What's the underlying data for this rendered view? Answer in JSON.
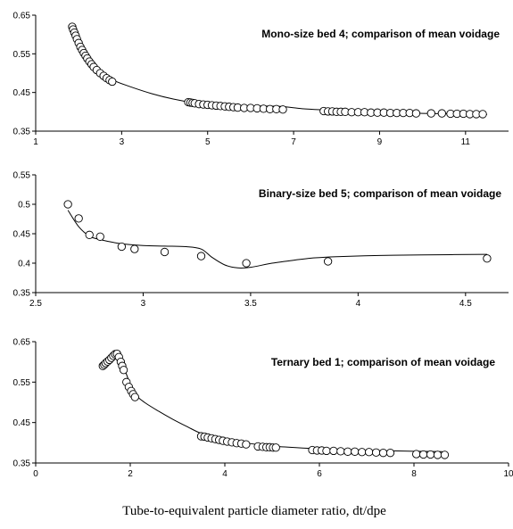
{
  "xlabel": "Tube-to-equivalent particle diameter ratio, dt/dpe",
  "chart_data": [
    {
      "type": "scatter",
      "title": "Mono-size bed 4; comparison of mean voidage",
      "xlim": [
        1,
        12
      ],
      "ylim": [
        0.35,
        0.65
      ],
      "xticks": [
        1,
        3,
        5,
        7,
        9,
        11
      ],
      "yticks": [
        0.35,
        0.45,
        0.55,
        0.65
      ],
      "xtick_labels": [
        "1",
        "3",
        "5",
        "7",
        "9",
        "11"
      ],
      "ytick_labels": [
        "0.35",
        "0.45",
        "0.55",
        "0.65"
      ],
      "grid": false,
      "series": [
        {
          "kind": "markers",
          "x": [
            1.85,
            1.87,
            1.9,
            1.93,
            1.96,
            2.0,
            2.04,
            2.08,
            2.12,
            2.16,
            2.2,
            2.25,
            2.3,
            2.35,
            2.42,
            2.5,
            2.58,
            2.65,
            2.72,
            2.78,
            4.55,
            4.6,
            4.65,
            4.7,
            4.8,
            4.9,
            5.0,
            5.1,
            5.2,
            5.3,
            5.4,
            5.5,
            5.6,
            5.7,
            5.85,
            6.0,
            6.15,
            6.3,
            6.45,
            6.6,
            6.75,
            7.7,
            7.8,
            7.9,
            8.0,
            8.1,
            8.2,
            8.35,
            8.5,
            8.65,
            8.8,
            8.95,
            9.1,
            9.25,
            9.4,
            9.55,
            9.7,
            9.85,
            10.2,
            10.45,
            10.65,
            10.8,
            10.95,
            11.1,
            11.25,
            11.4
          ],
          "y": [
            0.62,
            0.613,
            0.605,
            0.597,
            0.588,
            0.578,
            0.568,
            0.56,
            0.552,
            0.545,
            0.538,
            0.53,
            0.523,
            0.516,
            0.508,
            0.5,
            0.493,
            0.487,
            0.482,
            0.478,
            0.425,
            0.424,
            0.423,
            0.422,
            0.42,
            0.419,
            0.418,
            0.417,
            0.416,
            0.415,
            0.414,
            0.413,
            0.412,
            0.411,
            0.41,
            0.41,
            0.409,
            0.408,
            0.407,
            0.407,
            0.406,
            0.402,
            0.401,
            0.401,
            0.4,
            0.4,
            0.4,
            0.399,
            0.399,
            0.399,
            0.398,
            0.398,
            0.398,
            0.397,
            0.397,
            0.397,
            0.397,
            0.396,
            0.396,
            0.396,
            0.395,
            0.395,
            0.395,
            0.394,
            0.394,
            0.394
          ]
        },
        {
          "kind": "line",
          "x": [
            1.85,
            2.0,
            2.2,
            2.5,
            2.8,
            3.2,
            3.7,
            4.2,
            4.7,
            5.2,
            5.7,
            6.2,
            6.7,
            7.2,
            7.7,
            8.2,
            9.0,
            10.0,
            11.0,
            11.5
          ],
          "y": [
            0.62,
            0.585,
            0.55,
            0.505,
            0.482,
            0.465,
            0.447,
            0.433,
            0.423,
            0.417,
            0.414,
            0.415,
            0.414,
            0.408,
            0.405,
            0.403,
            0.4,
            0.396,
            0.394,
            0.393
          ]
        }
      ]
    },
    {
      "type": "scatter",
      "title": "Binary-size bed 5; comparison of mean voidage",
      "xlim": [
        2.5,
        4.7
      ],
      "ylim": [
        0.35,
        0.55
      ],
      "xticks": [
        2.5,
        3,
        3.5,
        4,
        4.5
      ],
      "yticks": [
        0.35,
        0.4,
        0.45,
        0.5,
        0.55
      ],
      "xtick_labels": [
        "2.5",
        "3",
        "3.5",
        "4",
        "4.5"
      ],
      "ytick_labels": [
        "0.35",
        "0.4",
        "0.45",
        "0.5",
        "0.55"
      ],
      "grid": false,
      "series": [
        {
          "kind": "markers",
          "x": [
            2.65,
            2.7,
            2.75,
            2.8,
            2.9,
            2.96,
            3.1,
            3.27,
            3.48,
            3.86,
            4.6
          ],
          "y": [
            0.5,
            0.476,
            0.448,
            0.445,
            0.428,
            0.424,
            0.419,
            0.412,
            0.4,
            0.403,
            0.408
          ]
        },
        {
          "kind": "line",
          "x": [
            2.65,
            2.7,
            2.75,
            2.8,
            2.9,
            3.0,
            3.1,
            3.2,
            3.27,
            3.32,
            3.38,
            3.44,
            3.5,
            3.6,
            3.7,
            3.8,
            3.9,
            4.1,
            4.3,
            4.6
          ],
          "y": [
            0.49,
            0.462,
            0.446,
            0.44,
            0.433,
            0.43,
            0.429,
            0.428,
            0.424,
            0.41,
            0.397,
            0.392,
            0.393,
            0.4,
            0.405,
            0.409,
            0.411,
            0.413,
            0.414,
            0.415
          ]
        }
      ]
    },
    {
      "type": "scatter",
      "title": "Ternary bed 1; comparison of mean voidage",
      "xlim": [
        0,
        10
      ],
      "ylim": [
        0.35,
        0.65
      ],
      "xticks": [
        0,
        2,
        4,
        6,
        8,
        10
      ],
      "yticks": [
        0.35,
        0.45,
        0.55,
        0.65
      ],
      "xtick_labels": [
        "0",
        "2",
        "4",
        "6",
        "8",
        "10"
      ],
      "ytick_labels": [
        "0.35",
        "0.45",
        "0.55",
        "0.65"
      ],
      "grid": false,
      "series": [
        {
          "kind": "markers",
          "x": [
            1.42,
            1.45,
            1.48,
            1.52,
            1.56,
            1.6,
            1.64,
            1.68,
            1.72,
            1.76,
            1.8,
            1.83,
            1.86,
            1.92,
            1.97,
            2.02,
            2.06,
            2.1,
            3.5,
            3.57,
            3.64,
            3.72,
            3.8,
            3.88,
            3.96,
            4.05,
            4.15,
            4.25,
            4.35,
            4.45,
            4.7,
            4.8,
            4.88,
            4.95,
            5.02,
            5.08,
            5.85,
            5.95,
            6.05,
            6.15,
            6.3,
            6.45,
            6.6,
            6.75,
            6.9,
            7.05,
            7.2,
            7.35,
            7.5,
            8.05,
            8.2,
            8.35,
            8.5,
            8.65
          ],
          "y": [
            0.59,
            0.593,
            0.597,
            0.601,
            0.605,
            0.61,
            0.615,
            0.619,
            0.62,
            0.612,
            0.6,
            0.59,
            0.58,
            0.55,
            0.538,
            0.528,
            0.52,
            0.513,
            0.416,
            0.415,
            0.413,
            0.411,
            0.409,
            0.407,
            0.405,
            0.403,
            0.401,
            0.399,
            0.398,
            0.396,
            0.391,
            0.39,
            0.389,
            0.389,
            0.388,
            0.388,
            0.382,
            0.381,
            0.381,
            0.38,
            0.38,
            0.379,
            0.378,
            0.378,
            0.377,
            0.377,
            0.376,
            0.375,
            0.375,
            0.372,
            0.371,
            0.371,
            0.37,
            0.37
          ]
        },
        {
          "kind": "line",
          "x": [
            1.45,
            1.55,
            1.65,
            1.7,
            1.8,
            1.9,
            2.0,
            2.1,
            2.3,
            2.6,
            2.9,
            3.2,
            3.5,
            3.8,
            4.2,
            4.6,
            5.0,
            5.5,
            6.0,
            6.5,
            7.0,
            7.5,
            8.0,
            8.6
          ],
          "y": [
            0.595,
            0.608,
            0.617,
            0.62,
            0.602,
            0.575,
            0.545,
            0.52,
            0.5,
            0.478,
            0.458,
            0.44,
            0.423,
            0.413,
            0.404,
            0.397,
            0.392,
            0.388,
            0.385,
            0.383,
            0.381,
            0.38,
            0.379,
            0.378
          ]
        }
      ]
    }
  ]
}
